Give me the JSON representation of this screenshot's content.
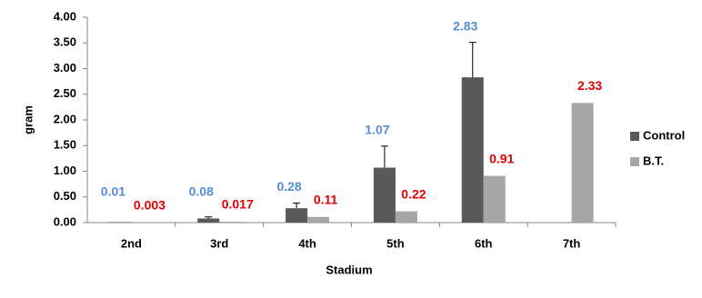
{
  "chart_data": {
    "type": "bar",
    "x_label": "Stadium",
    "y_label": "gram",
    "categories": [
      "2nd",
      "3rd",
      "4th",
      "5th",
      "6th",
      "7th"
    ],
    "series": [
      {
        "name": "Control",
        "color": "#595959",
        "label_color": "#558ed5",
        "values": [
          0.01,
          0.08,
          0.28,
          1.07,
          2.83,
          null
        ],
        "errors": [
          0,
          0.03,
          0.1,
          0.42,
          0.68,
          null
        ]
      },
      {
        "name": "B.T.",
        "color": "#a6a6a6",
        "label_color": "#e00000",
        "values": [
          0.003,
          0.017,
          0.11,
          0.22,
          0.91,
          2.33
        ]
      }
    ],
    "ylim": [
      0,
      4
    ],
    "yticks": [
      {
        "value": 0,
        "label": "0.00"
      },
      {
        "value": 0.5,
        "label": "0.50"
      },
      {
        "value": 1,
        "label": "1.00"
      },
      {
        "value": 1.5,
        "label": "1.50"
      },
      {
        "value": 2,
        "label": "2.00"
      },
      {
        "value": 2.5,
        "label": "2.50"
      },
      {
        "value": 3,
        "label": "3.00"
      },
      {
        "value": 3.5,
        "label": "3.50"
      },
      {
        "value": 4,
        "label": "4.00"
      }
    ],
    "legend": "right"
  }
}
